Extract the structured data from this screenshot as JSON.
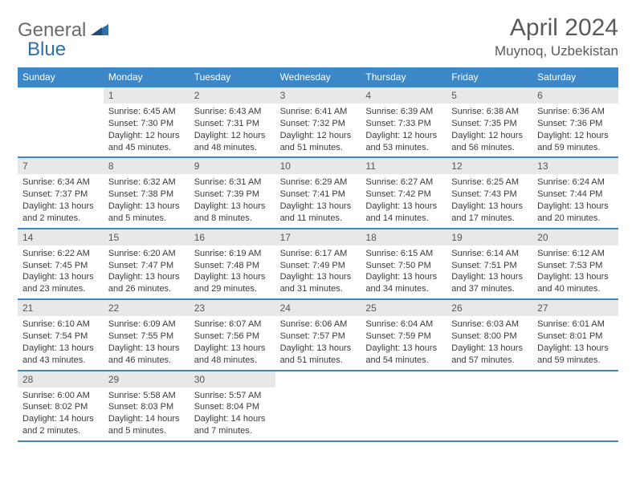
{
  "logo": {
    "word1": "General",
    "word2": "Blue"
  },
  "title": "April 2024",
  "location": "Muynoq, Uzbekistan",
  "colors": {
    "header_bg": "#3b87c8",
    "header_text": "#ffffff",
    "daynum_bg": "#e8e8e8",
    "daynum_text": "#555555",
    "info_text": "#3a3a3a",
    "rule": "#3b87c8",
    "logo_gray": "#6a6a6a",
    "logo_blue": "#2f6fae"
  },
  "days_of_week": [
    "Sunday",
    "Monday",
    "Tuesday",
    "Wednesday",
    "Thursday",
    "Friday",
    "Saturday"
  ],
  "weeks": [
    [
      {
        "n": "",
        "sr": "",
        "ss": "",
        "dl": ""
      },
      {
        "n": "1",
        "sr": "Sunrise: 6:45 AM",
        "ss": "Sunset: 7:30 PM",
        "dl": "Daylight: 12 hours and 45 minutes."
      },
      {
        "n": "2",
        "sr": "Sunrise: 6:43 AM",
        "ss": "Sunset: 7:31 PM",
        "dl": "Daylight: 12 hours and 48 minutes."
      },
      {
        "n": "3",
        "sr": "Sunrise: 6:41 AM",
        "ss": "Sunset: 7:32 PM",
        "dl": "Daylight: 12 hours and 51 minutes."
      },
      {
        "n": "4",
        "sr": "Sunrise: 6:39 AM",
        "ss": "Sunset: 7:33 PM",
        "dl": "Daylight: 12 hours and 53 minutes."
      },
      {
        "n": "5",
        "sr": "Sunrise: 6:38 AM",
        "ss": "Sunset: 7:35 PM",
        "dl": "Daylight: 12 hours and 56 minutes."
      },
      {
        "n": "6",
        "sr": "Sunrise: 6:36 AM",
        "ss": "Sunset: 7:36 PM",
        "dl": "Daylight: 12 hours and 59 minutes."
      }
    ],
    [
      {
        "n": "7",
        "sr": "Sunrise: 6:34 AM",
        "ss": "Sunset: 7:37 PM",
        "dl": "Daylight: 13 hours and 2 minutes."
      },
      {
        "n": "8",
        "sr": "Sunrise: 6:32 AM",
        "ss": "Sunset: 7:38 PM",
        "dl": "Daylight: 13 hours and 5 minutes."
      },
      {
        "n": "9",
        "sr": "Sunrise: 6:31 AM",
        "ss": "Sunset: 7:39 PM",
        "dl": "Daylight: 13 hours and 8 minutes."
      },
      {
        "n": "10",
        "sr": "Sunrise: 6:29 AM",
        "ss": "Sunset: 7:41 PM",
        "dl": "Daylight: 13 hours and 11 minutes."
      },
      {
        "n": "11",
        "sr": "Sunrise: 6:27 AM",
        "ss": "Sunset: 7:42 PM",
        "dl": "Daylight: 13 hours and 14 minutes."
      },
      {
        "n": "12",
        "sr": "Sunrise: 6:25 AM",
        "ss": "Sunset: 7:43 PM",
        "dl": "Daylight: 13 hours and 17 minutes."
      },
      {
        "n": "13",
        "sr": "Sunrise: 6:24 AM",
        "ss": "Sunset: 7:44 PM",
        "dl": "Daylight: 13 hours and 20 minutes."
      }
    ],
    [
      {
        "n": "14",
        "sr": "Sunrise: 6:22 AM",
        "ss": "Sunset: 7:45 PM",
        "dl": "Daylight: 13 hours and 23 minutes."
      },
      {
        "n": "15",
        "sr": "Sunrise: 6:20 AM",
        "ss": "Sunset: 7:47 PM",
        "dl": "Daylight: 13 hours and 26 minutes."
      },
      {
        "n": "16",
        "sr": "Sunrise: 6:19 AM",
        "ss": "Sunset: 7:48 PM",
        "dl": "Daylight: 13 hours and 29 minutes."
      },
      {
        "n": "17",
        "sr": "Sunrise: 6:17 AM",
        "ss": "Sunset: 7:49 PM",
        "dl": "Daylight: 13 hours and 31 minutes."
      },
      {
        "n": "18",
        "sr": "Sunrise: 6:15 AM",
        "ss": "Sunset: 7:50 PM",
        "dl": "Daylight: 13 hours and 34 minutes."
      },
      {
        "n": "19",
        "sr": "Sunrise: 6:14 AM",
        "ss": "Sunset: 7:51 PM",
        "dl": "Daylight: 13 hours and 37 minutes."
      },
      {
        "n": "20",
        "sr": "Sunrise: 6:12 AM",
        "ss": "Sunset: 7:53 PM",
        "dl": "Daylight: 13 hours and 40 minutes."
      }
    ],
    [
      {
        "n": "21",
        "sr": "Sunrise: 6:10 AM",
        "ss": "Sunset: 7:54 PM",
        "dl": "Daylight: 13 hours and 43 minutes."
      },
      {
        "n": "22",
        "sr": "Sunrise: 6:09 AM",
        "ss": "Sunset: 7:55 PM",
        "dl": "Daylight: 13 hours and 46 minutes."
      },
      {
        "n": "23",
        "sr": "Sunrise: 6:07 AM",
        "ss": "Sunset: 7:56 PM",
        "dl": "Daylight: 13 hours and 48 minutes."
      },
      {
        "n": "24",
        "sr": "Sunrise: 6:06 AM",
        "ss": "Sunset: 7:57 PM",
        "dl": "Daylight: 13 hours and 51 minutes."
      },
      {
        "n": "25",
        "sr": "Sunrise: 6:04 AM",
        "ss": "Sunset: 7:59 PM",
        "dl": "Daylight: 13 hours and 54 minutes."
      },
      {
        "n": "26",
        "sr": "Sunrise: 6:03 AM",
        "ss": "Sunset: 8:00 PM",
        "dl": "Daylight: 13 hours and 57 minutes."
      },
      {
        "n": "27",
        "sr": "Sunrise: 6:01 AM",
        "ss": "Sunset: 8:01 PM",
        "dl": "Daylight: 13 hours and 59 minutes."
      }
    ],
    [
      {
        "n": "28",
        "sr": "Sunrise: 6:00 AM",
        "ss": "Sunset: 8:02 PM",
        "dl": "Daylight: 14 hours and 2 minutes."
      },
      {
        "n": "29",
        "sr": "Sunrise: 5:58 AM",
        "ss": "Sunset: 8:03 PM",
        "dl": "Daylight: 14 hours and 5 minutes."
      },
      {
        "n": "30",
        "sr": "Sunrise: 5:57 AM",
        "ss": "Sunset: 8:04 PM",
        "dl": "Daylight: 14 hours and 7 minutes."
      },
      {
        "n": "",
        "sr": "",
        "ss": "",
        "dl": ""
      },
      {
        "n": "",
        "sr": "",
        "ss": "",
        "dl": ""
      },
      {
        "n": "",
        "sr": "",
        "ss": "",
        "dl": ""
      },
      {
        "n": "",
        "sr": "",
        "ss": "",
        "dl": ""
      }
    ]
  ]
}
